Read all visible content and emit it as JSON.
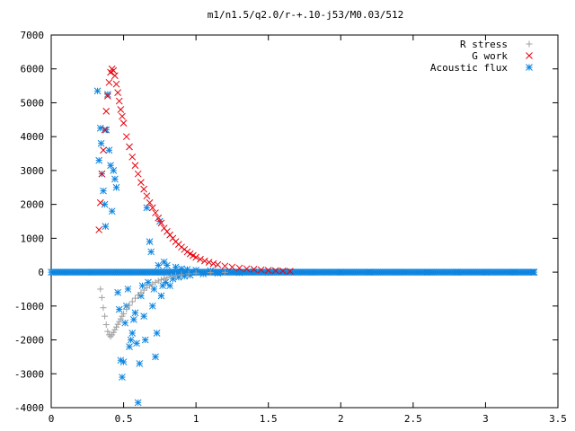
{
  "chart_data": {
    "type": "scatter",
    "title": "m1/n1.5/q2.0/r-+.10-j53/M0.03/512",
    "xlabel": "",
    "ylabel": "",
    "xlim": [
      0,
      3.5
    ],
    "ylim": [
      -4000,
      7000
    ],
    "x_ticks": [
      0,
      0.5,
      1,
      1.5,
      2,
      2.5,
      3,
      3.5
    ],
    "x_tick_labels": [
      "0",
      "0.5",
      "1",
      "1.5",
      "2",
      "2.5",
      "3",
      "3.5"
    ],
    "y_ticks": [
      -4000,
      -3000,
      -2000,
      -1000,
      0,
      1000,
      2000,
      3000,
      4000,
      5000,
      6000,
      7000
    ],
    "y_tick_labels": [
      "-4000",
      "-3000",
      "-2000",
      "-1000",
      "0",
      "1000",
      "2000",
      "3000",
      "4000",
      "5000",
      "6000",
      "7000"
    ],
    "grid": false,
    "legend_position": "top-right",
    "series": [
      {
        "name": "R stress",
        "marker": "plus",
        "color": "#a0a0a0",
        "points": [
          [
            0.34,
            -500
          ],
          [
            0.35,
            -750
          ],
          [
            0.36,
            -1050
          ],
          [
            0.37,
            -1300
          ],
          [
            0.38,
            -1550
          ],
          [
            0.39,
            -1750
          ],
          [
            0.4,
            -1850
          ],
          [
            0.41,
            -1900
          ],
          [
            0.42,
            -1850
          ],
          [
            0.43,
            -1780
          ],
          [
            0.44,
            -1700
          ],
          [
            0.45,
            -1620
          ],
          [
            0.46,
            -1540
          ],
          [
            0.47,
            -1460
          ],
          [
            0.48,
            -1380
          ],
          [
            0.49,
            -1300
          ],
          [
            0.5,
            -1230
          ],
          [
            0.52,
            -1100
          ],
          [
            0.54,
            -980
          ],
          [
            0.56,
            -870
          ],
          [
            0.58,
            -770
          ],
          [
            0.6,
            -680
          ],
          [
            0.62,
            -600
          ],
          [
            0.64,
            -530
          ],
          [
            0.66,
            -460
          ],
          [
            0.68,
            -400
          ],
          [
            0.7,
            -350
          ],
          [
            0.72,
            -300
          ],
          [
            0.74,
            -260
          ],
          [
            0.76,
            -220
          ],
          [
            0.78,
            -190
          ],
          [
            0.8,
            -160
          ],
          [
            0.83,
            -130
          ],
          [
            0.86,
            -100
          ],
          [
            0.9,
            -75
          ],
          [
            0.95,
            -50
          ],
          [
            1.0,
            -30
          ],
          [
            1.1,
            -15
          ],
          [
            1.2,
            -5
          ]
        ]
      },
      {
        "name": "G work",
        "marker": "cross",
        "color": "#e8000b",
        "points": [
          [
            0.33,
            1250
          ],
          [
            0.34,
            2050
          ],
          [
            0.35,
            2900
          ],
          [
            0.36,
            3600
          ],
          [
            0.37,
            4200
          ],
          [
            0.38,
            4750
          ],
          [
            0.39,
            5200
          ],
          [
            0.4,
            5600
          ],
          [
            0.41,
            5900
          ],
          [
            0.42,
            6000
          ],
          [
            0.43,
            5950
          ],
          [
            0.44,
            5800
          ],
          [
            0.45,
            5550
          ],
          [
            0.46,
            5300
          ],
          [
            0.47,
            5050
          ],
          [
            0.48,
            4800
          ],
          [
            0.49,
            4600
          ],
          [
            0.5,
            4400
          ],
          [
            0.52,
            4000
          ],
          [
            0.54,
            3700
          ],
          [
            0.56,
            3400
          ],
          [
            0.58,
            3150
          ],
          [
            0.6,
            2900
          ],
          [
            0.62,
            2650
          ],
          [
            0.64,
            2450
          ],
          [
            0.66,
            2250
          ],
          [
            0.68,
            2050
          ],
          [
            0.7,
            1900
          ],
          [
            0.72,
            1750
          ],
          [
            0.74,
            1600
          ],
          [
            0.76,
            1450
          ],
          [
            0.78,
            1300
          ],
          [
            0.8,
            1200
          ],
          [
            0.82,
            1100
          ],
          [
            0.84,
            1000
          ],
          [
            0.86,
            900
          ],
          [
            0.88,
            820
          ],
          [
            0.9,
            740
          ],
          [
            0.92,
            670
          ],
          [
            0.94,
            600
          ],
          [
            0.96,
            540
          ],
          [
            0.98,
            490
          ],
          [
            1.0,
            440
          ],
          [
            1.03,
            380
          ],
          [
            1.06,
            330
          ],
          [
            1.09,
            290
          ],
          [
            1.12,
            250
          ],
          [
            1.15,
            220
          ],
          [
            1.2,
            180
          ],
          [
            1.25,
            150
          ],
          [
            1.3,
            120
          ],
          [
            1.35,
            100
          ],
          [
            1.4,
            85
          ],
          [
            1.45,
            70
          ],
          [
            1.5,
            55
          ],
          [
            1.55,
            45
          ],
          [
            1.6,
            35
          ],
          [
            1.65,
            25
          ]
        ]
      },
      {
        "name": "Acoustic flux",
        "marker": "star",
        "color": "#0d85e0",
        "points": [
          [
            0.32,
            5350
          ],
          [
            0.33,
            3300
          ],
          [
            0.34,
            4250
          ],
          [
            0.345,
            3800
          ],
          [
            0.35,
            2900
          ],
          [
            0.36,
            2400
          ],
          [
            0.37,
            2000
          ],
          [
            0.375,
            1350
          ],
          [
            0.38,
            4200
          ],
          [
            0.39,
            5250
          ],
          [
            0.4,
            3600
          ],
          [
            0.41,
            3150
          ],
          [
            0.42,
            1800
          ],
          [
            0.43,
            3000
          ],
          [
            0.44,
            2750
          ],
          [
            0.45,
            2500
          ],
          [
            0.46,
            -600
          ],
          [
            0.47,
            -1100
          ],
          [
            0.48,
            -2600
          ],
          [
            0.49,
            -3100
          ],
          [
            0.5,
            -2650
          ],
          [
            0.51,
            -1500
          ],
          [
            0.52,
            -1000
          ],
          [
            0.53,
            -500
          ],
          [
            0.54,
            -2200
          ],
          [
            0.55,
            -2000
          ],
          [
            0.56,
            -1800
          ],
          [
            0.57,
            -1400
          ],
          [
            0.58,
            -1200
          ],
          [
            0.59,
            -2100
          ],
          [
            0.6,
            -3850
          ],
          [
            0.61,
            -2700
          ],
          [
            0.62,
            -700
          ],
          [
            0.63,
            -400
          ],
          [
            0.64,
            -1300
          ],
          [
            0.65,
            -2000
          ],
          [
            0.66,
            1900
          ],
          [
            0.67,
            -300
          ],
          [
            0.68,
            900
          ],
          [
            0.69,
            600
          ],
          [
            0.7,
            -1000
          ],
          [
            0.71,
            -500
          ],
          [
            0.72,
            -2500
          ],
          [
            0.73,
            -1800
          ],
          [
            0.74,
            200
          ],
          [
            0.75,
            1500
          ],
          [
            0.76,
            -700
          ],
          [
            0.77,
            -400
          ],
          [
            0.78,
            300
          ],
          [
            0.79,
            -300
          ],
          [
            0.8,
            200
          ],
          [
            0.82,
            -400
          ],
          [
            0.84,
            -200
          ],
          [
            0.86,
            150
          ],
          [
            0.88,
            -150
          ],
          [
            0.9,
            100
          ],
          [
            0.92,
            -120
          ],
          [
            0.94,
            80
          ],
          [
            0.96,
            -90
          ],
          [
            1.0,
            60
          ],
          [
            1.05,
            -50
          ],
          [
            1.1,
            40
          ],
          [
            1.15,
            -30
          ],
          [
            1.2,
            20
          ],
          [
            1.3,
            -15
          ],
          [
            1.4,
            10
          ],
          [
            1.5,
            -8
          ],
          [
            1.6,
            5
          ],
          [
            1.8,
            0
          ],
          [
            2.0,
            0
          ],
          [
            2.2,
            0
          ],
          [
            2.4,
            0
          ],
          [
            2.6,
            0
          ],
          [
            2.8,
            0
          ],
          [
            3.0,
            0
          ],
          [
            3.2,
            0
          ],
          [
            3.33,
            0
          ]
        ]
      }
    ]
  }
}
